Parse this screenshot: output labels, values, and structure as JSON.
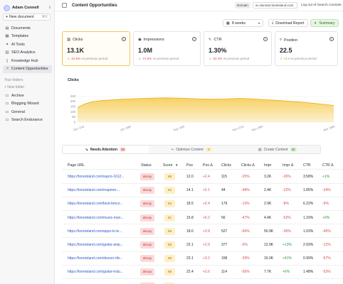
{
  "user": {
    "name": "Adam Connell"
  },
  "new_document": {
    "label": "New document",
    "shortcut": "⌘K"
  },
  "sidebar": {
    "nav": [
      {
        "label": "Documents",
        "icon": "document-icon"
      },
      {
        "label": "Templates",
        "icon": "template-icon"
      },
      {
        "label": "AI Tools",
        "icon": "sparkle-icon"
      },
      {
        "label": "SEO Analytics",
        "icon": "chart-icon"
      },
      {
        "label": "Knowledge Hub",
        "icon": "book-icon"
      },
      {
        "label": "Content Opportunities",
        "icon": "trend-icon"
      }
    ],
    "folders_title": "Your folders",
    "new_folder": "+ New folder",
    "folders": [
      {
        "label": "Archive"
      },
      {
        "label": "Blogging Wizard"
      },
      {
        "label": "General"
      },
      {
        "label": "Search Endurance"
      }
    ]
  },
  "header": {
    "title": "Content Opportunities",
    "domain_label": "Domain",
    "domain_value": "sc-domain:toneisland.com",
    "logout": "Log out of Search Console"
  },
  "controls": {
    "period": "8 weeks",
    "download": "Download Report",
    "summary": "Summary"
  },
  "cards": [
    {
      "title": "Clicks",
      "value": "13.1K",
      "delta": "-31.6%",
      "suffix": "vs previous period",
      "tone": "neg"
    },
    {
      "title": "Impressions",
      "value": "1.0M",
      "delta": "-71.6%",
      "suffix": "vs previous period",
      "tone": "neg"
    },
    {
      "title": "CTR",
      "value": "1.30%",
      "delta": "-22.4%",
      "suffix": "vs previous period",
      "tone": "neg"
    },
    {
      "title": "Position",
      "value": "22.5",
      "delta": "+3.4",
      "suffix": "vs previous period",
      "tone": "pos"
    }
  ],
  "chart_data": {
    "type": "area",
    "title": "Clicks",
    "y_ticks": [
      "0",
      "50",
      "100",
      "150",
      "200",
      "250"
    ],
    "ylim": [
      0,
      300
    ],
    "x_labels": [
      "Dec 2nd",
      "Jan 18th",
      "Sep 16th",
      "Nov 21st",
      "Nov 28th",
      "Mar 18th"
    ],
    "color": "#f7c948",
    "values": [
      140,
      175,
      195,
      205,
      210,
      215,
      220,
      222,
      225,
      228,
      230,
      232,
      233,
      232,
      230,
      228,
      225,
      222,
      220,
      220,
      222,
      225,
      228,
      226,
      222,
      218,
      214,
      210,
      205,
      200,
      195,
      190,
      182,
      175,
      168,
      160
    ]
  },
  "tabs": [
    {
      "label": "Needs Attention",
      "count": "20",
      "tone": "b-red"
    },
    {
      "label": "Optimize Content",
      "count": "0",
      "tone": "b-yel"
    },
    {
      "label": "Create Content",
      "count": "25",
      "tone": "b-grn"
    }
  ],
  "table": {
    "headers": [
      "Page URL",
      "Status",
      "Score",
      "Pos",
      "Pos Δ",
      "Clicks",
      "Clicks Δ",
      "Impr",
      "Impr Δ",
      "CTR",
      "CTR Δ"
    ],
    "rows": [
      {
        "url": "https://toneisland.com/supro-1612...",
        "status": "decay",
        "score": "69",
        "pos": "12.0",
        "pos_d": "+2.4",
        "clicks": "115",
        "clicks_d": "-25%",
        "impr": "3.2K",
        "impr_d": "-26%",
        "ctr": "3.58%",
        "ctr_d": "+1%"
      },
      {
        "url": "https://toneisland.com/mapmer-...",
        "status": "decay",
        "score": "64",
        "pos": "14.1",
        "pos_d": "+2.1",
        "clicks": "44",
        "clicks_d": "-48%",
        "impr": "2.4K",
        "impr_d": "-22%",
        "ctr": "1.85%",
        "ctr_d": "-34%"
      },
      {
        "url": "https://toneisland.com/best-bmco...",
        "status": "decay",
        "score": "63",
        "pos": "18.5",
        "pos_d": "+2.4",
        "clicks": "179",
        "clicks_d": "-13%",
        "impr": "2.9K",
        "impr_d": "-8%",
        "ctr": "6.22%",
        "ctr_d": "-9%"
      },
      {
        "url": "https://toneisland.com/music-man...",
        "status": "decay",
        "score": "61",
        "pos": "15.8",
        "pos_d": "+5.2",
        "clicks": "56",
        "clicks_d": "-47%",
        "impr": "4.4K",
        "impr_d": "-52%",
        "ctr": "1.33%",
        "ctr_d": "+9%"
      },
      {
        "url": "https://toneisland.com/apps-to-le...",
        "status": "decay",
        "score": "59",
        "pos": "18.6",
        "pos_d": "+3.9",
        "clicks": "527",
        "clicks_d": "-66%",
        "impr": "50.9K",
        "impr_d": "-36%",
        "ctr": "1.03%",
        "ctr_d": "-46%"
      },
      {
        "url": "https://toneisland.com/guitar-amp...",
        "status": "decay",
        "score": "59",
        "pos": "22.1",
        "pos_d": "+2.9",
        "clicks": "377",
        "clicks_d": "-0%",
        "impr": "12.9K",
        "impr_d": "+13%",
        "ctr": "2.93%",
        "ctr_d": "-12%"
      },
      {
        "url": "https://toneisland.com/deezer-dis...",
        "status": "decay",
        "score": "59",
        "pos": "23.1",
        "pos_d": "+3.2",
        "clicks": "158",
        "clicks_d": "-29%",
        "impr": "16.0K",
        "impr_d": "+41%",
        "ctr": "0.99%",
        "ctr_d": "-57%"
      },
      {
        "url": "https://toneisland.com/guitar-indu...",
        "status": "decay",
        "score": "58",
        "pos": "22.4",
        "pos_d": "+2.6",
        "clicks": "114",
        "clicks_d": "-56%",
        "impr": "7.7K",
        "impr_d": "+6%",
        "ctr": "1.48%",
        "ctr_d": "-53%"
      },
      {
        "url": "https://toneisland.com/websites-t...",
        "status": "decay",
        "score": "24",
        "pos": "25.3",
        "pos_d": "+2.3",
        "clicks": "651",
        "clicks_d": "-65%",
        "impr": "57.6K",
        "impr_d": "-24%",
        "ctr": "1.13%",
        "ctr_d": "-54%"
      }
    ]
  }
}
